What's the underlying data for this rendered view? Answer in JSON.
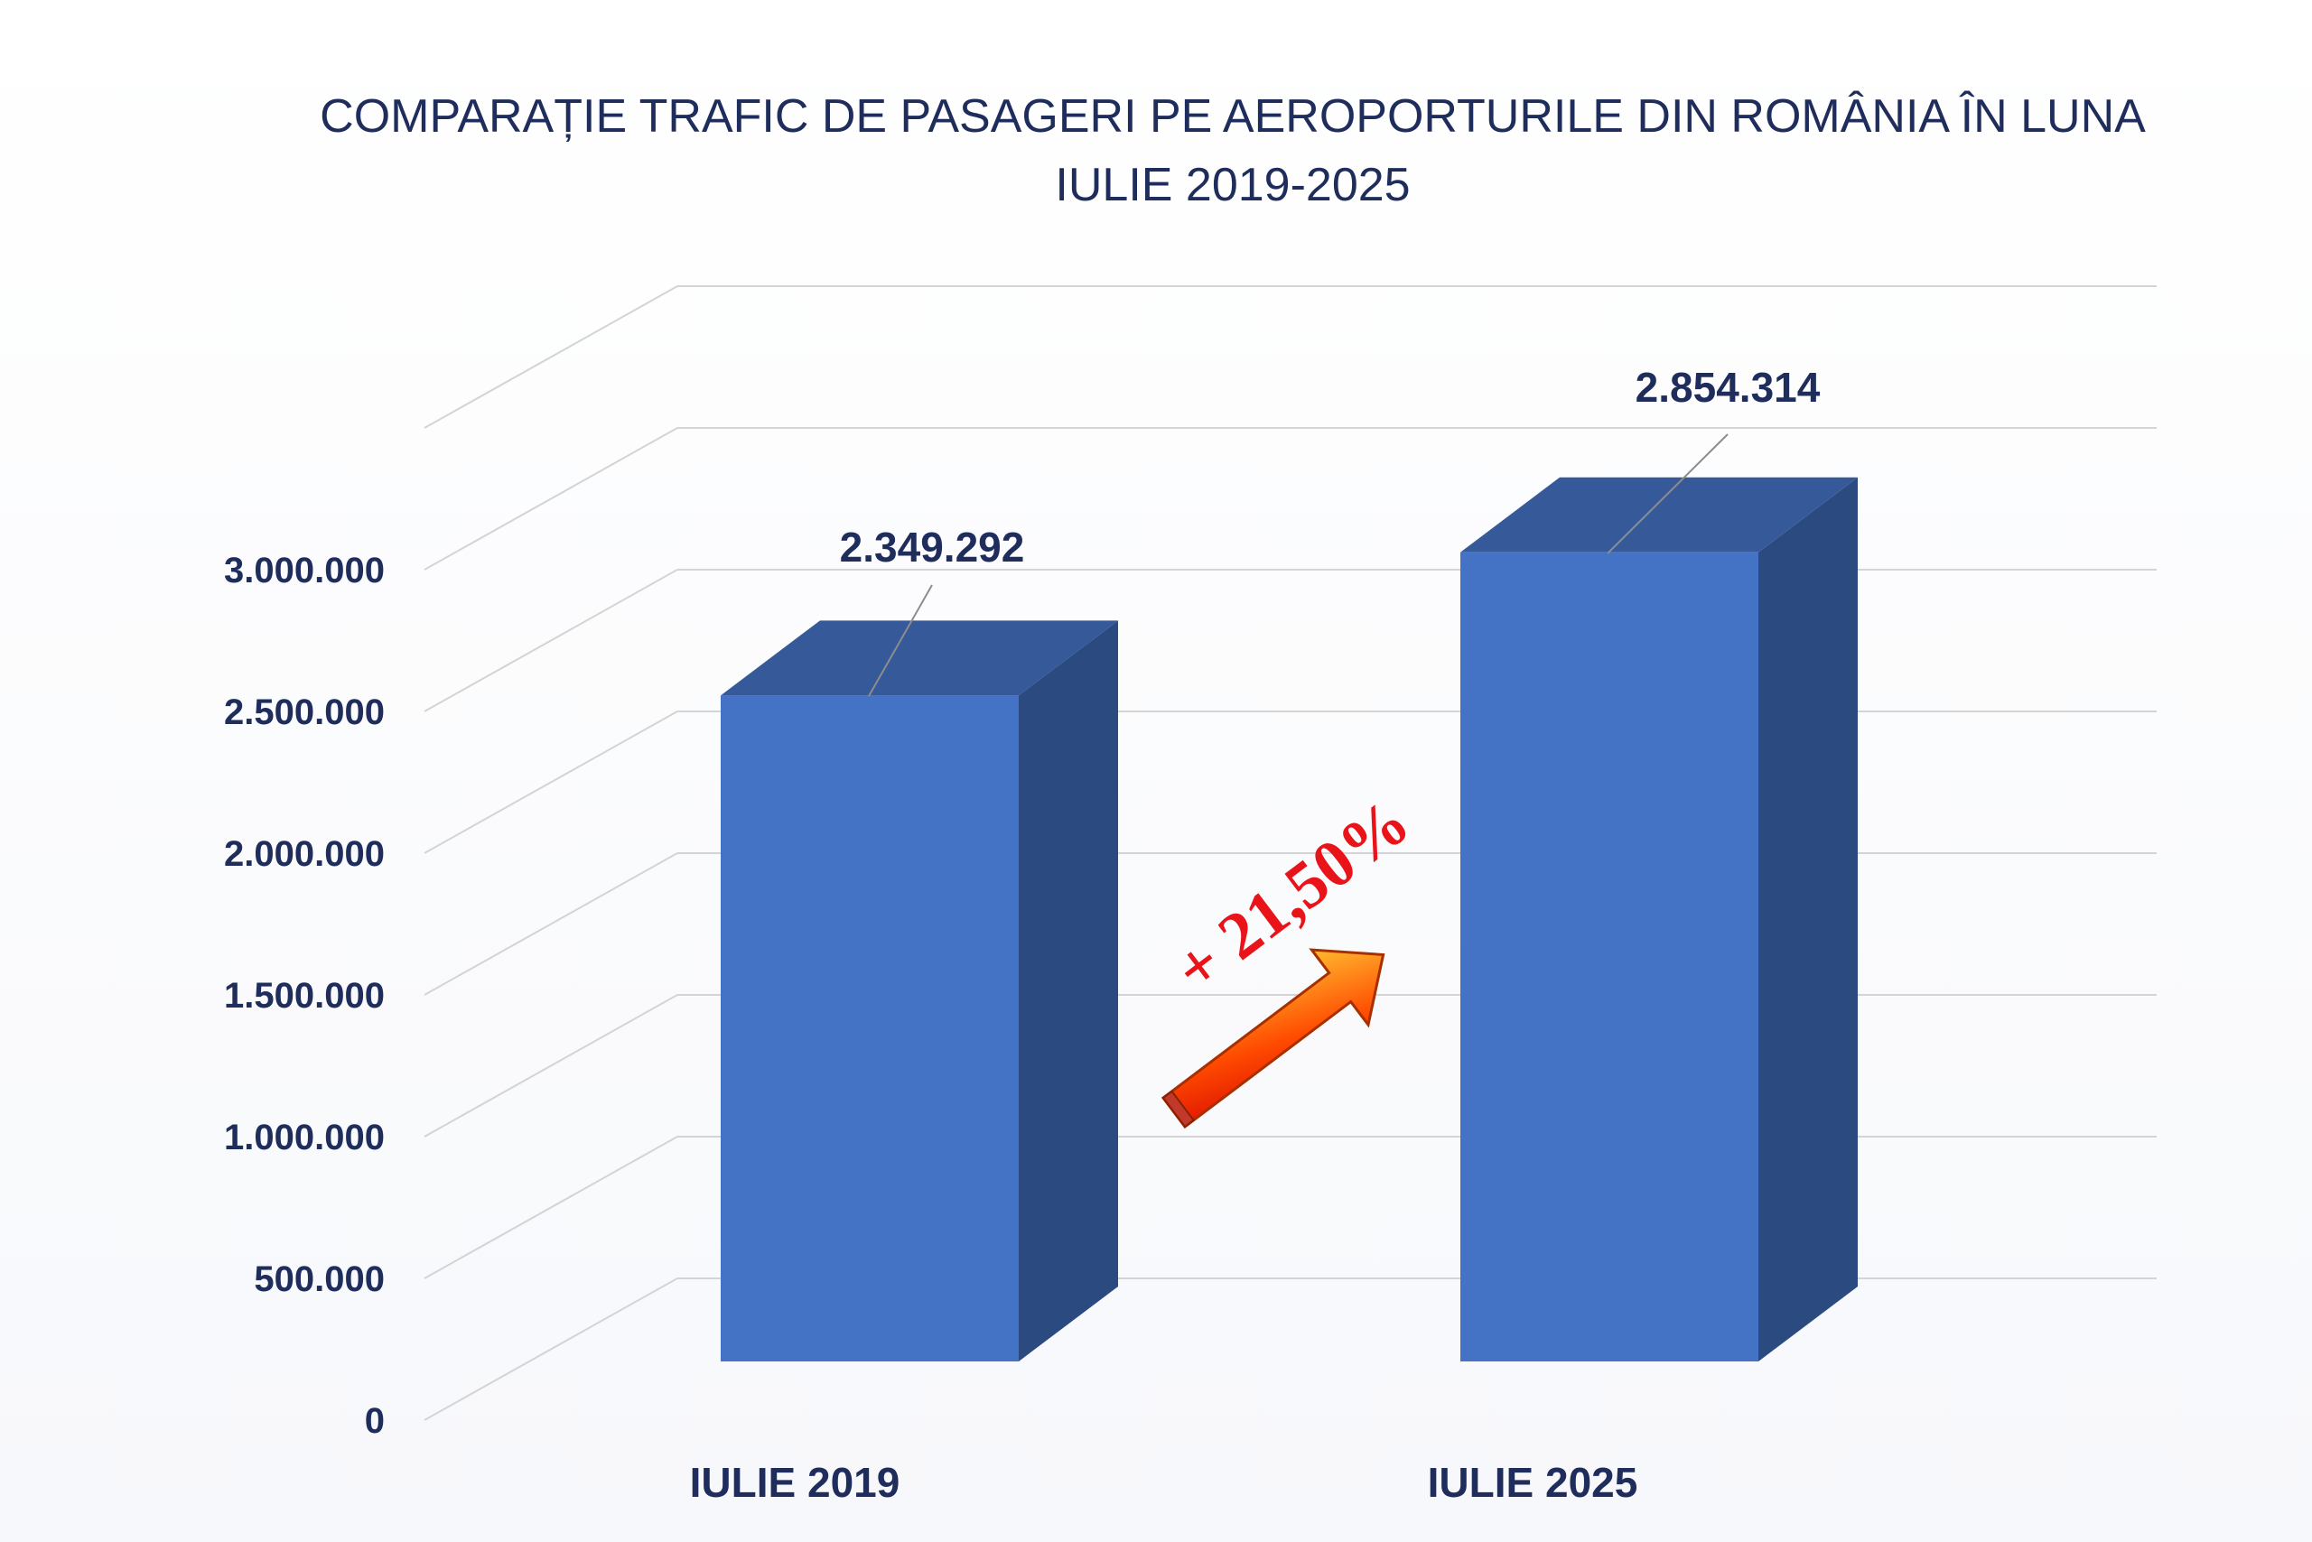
{
  "chart_data": {
    "type": "bar",
    "title_lines": [
      "COMPARAȚIE TRAFIC DE PASAGERI PE AEROPORTURILE DIN ROMÂNIA ÎN LUNA",
      "IULIE 2019-2025"
    ],
    "categories": [
      "IULIE 2019",
      "IULIE 2025"
    ],
    "values": [
      2349292,
      2854314
    ],
    "value_labels": [
      "2.349.292",
      "2.854.314"
    ],
    "y_ticks": [
      0,
      500000,
      1000000,
      1500000,
      2000000,
      2500000,
      3000000
    ],
    "y_tick_labels": [
      "0",
      "500.000",
      "1.000.000",
      "1.500.000",
      "2.000.000",
      "2.500.000",
      "3.000.000"
    ],
    "ylim": [
      0,
      3500000
    ],
    "grid": true,
    "three_d": true,
    "annotation": {
      "text": "+ 21,50%",
      "type": "arrow-up-right"
    },
    "colors": {
      "bar_front": "#4472c4",
      "bar_top": "#365a99",
      "bar_side": "#2a4a80",
      "text": "#1f2d5c",
      "grid": "#d4d4d4",
      "annotation": "#e8141a"
    }
  }
}
